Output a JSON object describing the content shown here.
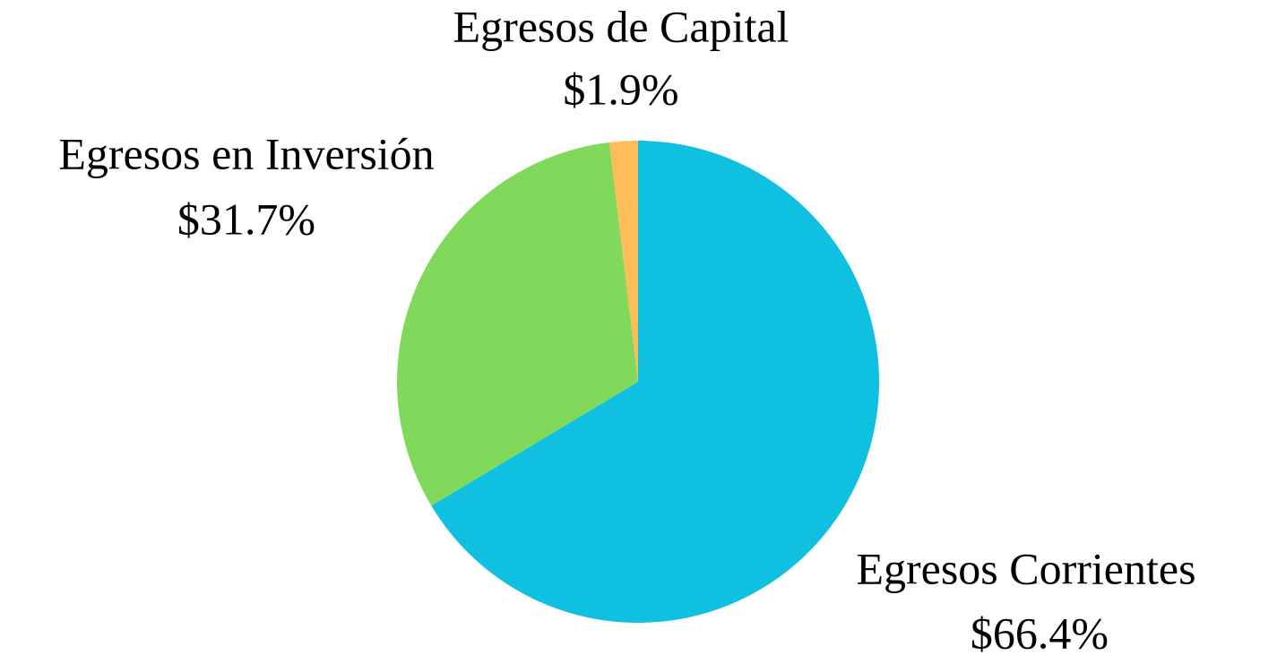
{
  "chart_data": {
    "type": "pie",
    "categories": [
      "Egresos Corrientes",
      "Egresos en Inversión",
      "Egresos de Capital"
    ],
    "values": [
      66.4,
      31.7,
      1.9
    ],
    "value_labels": [
      "$66.4%",
      "$31.7%",
      "$1.9%"
    ],
    "colors": [
      "#0fc0e0",
      "#80d95a",
      "#ffbd59"
    ]
  }
}
